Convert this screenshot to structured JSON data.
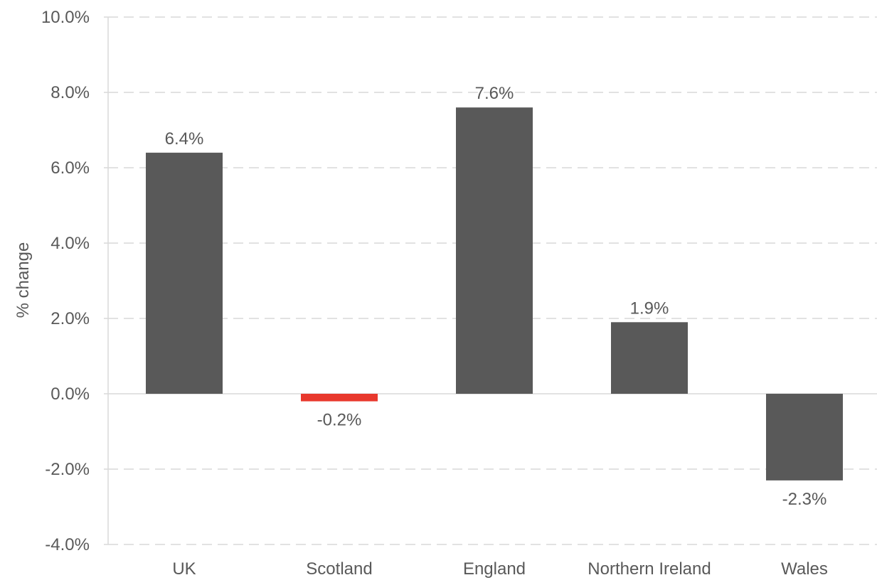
{
  "chart_data": {
    "type": "bar",
    "categories": [
      "UK",
      "Scotland",
      "England",
      "Northern Ireland",
      "Wales"
    ],
    "series": [
      {
        "values": [
          6.4,
          -0.2,
          7.6,
          1.9,
          -2.3
        ],
        "data_labels": [
          "6.4%",
          "-0.2%",
          "7.6%",
          "1.9%",
          "-2.3%"
        ]
      }
    ],
    "title": "",
    "xlabel": "",
    "ylabel": "% change",
    "ylim": [
      -4.0,
      10.0
    ],
    "y_ticks": [
      -4.0,
      -2.0,
      0.0,
      2.0,
      4.0,
      6.0,
      8.0,
      10.0
    ],
    "y_tick_labels": [
      "-4.0%",
      "-2.0%",
      "0.0%",
      "2.0%",
      "4.0%",
      "6.0%",
      "8.0%",
      "10.0%"
    ],
    "grid": "dashed horizontal",
    "legend": "none",
    "colors": {
      "bar": "#595959",
      "highlight": "#e8382d",
      "highlight_category": "Scotland",
      "grid": "#d9d9d9",
      "axis": "#d9d9d9",
      "text": "#595959"
    }
  }
}
